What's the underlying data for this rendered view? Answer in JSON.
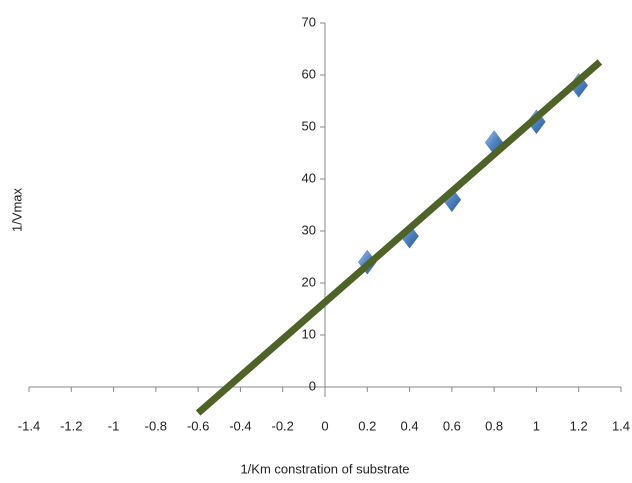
{
  "chart_data": {
    "type": "scatter",
    "x_label": "1/Km constration of substrate",
    "y_label": "1/Vmax",
    "x": [
      0.2,
      0.4,
      0.6,
      0.8,
      1,
      1.2
    ],
    "values": [
      24,
      29,
      36,
      47,
      51,
      58
    ],
    "color": "#4f81bd",
    "trendline": {
      "x": [
        -0.6,
        1.3
      ],
      "values": [
        -5,
        62.5
      ],
      "color": "#4f6228"
    },
    "xlim": [
      -1.4,
      1.4
    ],
    "ylim": [
      0,
      70
    ],
    "xticks": [
      -1.4,
      -1.2,
      -1,
      -0.8,
      -0.6,
      -0.4,
      -0.2,
      0,
      0.2,
      0.4,
      0.6,
      0.8,
      1,
      1.2,
      1.4
    ],
    "yticks": [
      0,
      10,
      20,
      30,
      40,
      50,
      60,
      70
    ]
  }
}
